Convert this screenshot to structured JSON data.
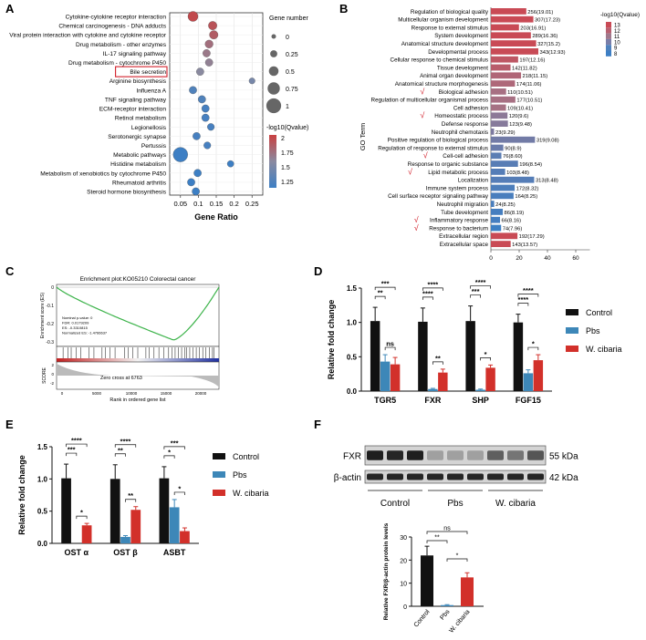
{
  "panels": {
    "A": {
      "label": "A",
      "title_note": "",
      "xlabel": "Gene Ratio",
      "xlim": [
        0.02,
        0.28
      ],
      "xticks": [
        0.05,
        0.1,
        0.15,
        0.2,
        0.25
      ],
      "xtick_labels": [
        "0.05",
        "0.1",
        "0.15",
        "0.2",
        "0.25"
      ],
      "highlighted": "Bile secretion",
      "size_legend_title": "Gene number",
      "size_legend": [
        "0",
        "0.25",
        "0.5",
        "0.75",
        "1"
      ],
      "color_legend_title": "-log10(Qvalue)",
      "color_legend": [
        "2",
        "1.75",
        "1.5",
        "1.25"
      ],
      "terms": [
        {
          "name": "Cytokine-cytokine receptor interaction",
          "ratio": 0.085,
          "size": 0.55,
          "q": 1.95
        },
        {
          "name": "Chemical carcinogenesis - DNA adducts",
          "ratio": 0.14,
          "size": 0.4,
          "q": 1.9
        },
        {
          "name": "Viral protein interaction with cytokine and cytokine receptor",
          "ratio": 0.143,
          "size": 0.4,
          "q": 1.85
        },
        {
          "name": "Drug metabolism - other enzymes",
          "ratio": 0.13,
          "size": 0.35,
          "q": 1.75
        },
        {
          "name": "IL-17 signaling pathway",
          "ratio": 0.123,
          "size": 0.3,
          "q": 1.7
        },
        {
          "name": "Drug metabolism - cytochrome P450",
          "ratio": 0.13,
          "size": 0.3,
          "q": 1.65
        },
        {
          "name": "Bile secretion",
          "ratio": 0.105,
          "size": 0.3,
          "q": 1.6
        },
        {
          "name": "Arginine biosynthesis",
          "ratio": 0.25,
          "size": 0.15,
          "q": 1.5
        },
        {
          "name": "Influenza A",
          "ratio": 0.085,
          "size": 0.3,
          "q": 1.3
        },
        {
          "name": "TNF signaling pathway",
          "ratio": 0.11,
          "size": 0.3,
          "q": 1.3
        },
        {
          "name": "ECM-receptor interaction",
          "ratio": 0.12,
          "size": 0.3,
          "q": 1.25
        },
        {
          "name": "Retinol metabolism",
          "ratio": 0.12,
          "size": 0.3,
          "q": 1.25
        },
        {
          "name": "Legionellosis",
          "ratio": 0.135,
          "size": 0.25,
          "q": 1.25
        },
        {
          "name": "Serotonergic synapse",
          "ratio": 0.095,
          "size": 0.3,
          "q": 1.25
        },
        {
          "name": "Pertussis",
          "ratio": 0.125,
          "size": 0.25,
          "q": 1.25
        },
        {
          "name": "Metabolic pathways",
          "ratio": 0.05,
          "size": 1.0,
          "q": 1.2
        },
        {
          "name": "Histidine metabolism",
          "ratio": 0.19,
          "size": 0.2,
          "q": 1.2
        },
        {
          "name": "Metabolism of xenobiotics by cytochrome P450",
          "ratio": 0.098,
          "size": 0.3,
          "q": 1.2
        },
        {
          "name": "Rheumatoid arthritis",
          "ratio": 0.08,
          "size": 0.3,
          "q": 1.2
        },
        {
          "name": "Steroid hormone biosynthesis",
          "ratio": 0.093,
          "size": 0.3,
          "q": 1.2
        }
      ]
    },
    "B": {
      "label": "B",
      "ylabel": "GO Term",
      "xlim": [
        0,
        70
      ],
      "xticks": [
        "0",
        "20",
        "40",
        "60"
      ],
      "legend_title": "-log10(Qvalue)",
      "legend_values": [
        "13",
        "12",
        "11",
        "10",
        "9",
        "8"
      ],
      "check_mark": "√",
      "terms": [
        {
          "name": "Regulation of biological quality",
          "value": 256,
          "q": 19.01,
          "label": "256(19.01)",
          "check": false
        },
        {
          "name": "Multicellular organism development",
          "value": 307,
          "q": 17.23,
          "label": "307(17.23)",
          "check": false
        },
        {
          "name": "Response to external stimulus",
          "value": 203,
          "q": 16.91,
          "label": "203(16.91)",
          "check": false
        },
        {
          "name": "System development",
          "value": 289,
          "q": 16.36,
          "label": "289(16.36)",
          "check": false
        },
        {
          "name": "Anatomical structure development",
          "value": 327,
          "q": 15.2,
          "label": "327(15.2)",
          "check": false
        },
        {
          "name": "Developmental process",
          "value": 343,
          "q": 12.93,
          "label": "343(12.93)",
          "check": false
        },
        {
          "name": "Cellular response to chemical stimulus",
          "value": 197,
          "q": 12.16,
          "label": "197(12.16)",
          "check": false
        },
        {
          "name": "Tissue development",
          "value": 142,
          "q": 11.82,
          "label": "142(11.82)",
          "check": false
        },
        {
          "name": "Animal organ development",
          "value": 218,
          "q": 11.15,
          "label": "218(11.15)",
          "check": false
        },
        {
          "name": "Anatomical structure morphogenesis",
          "value": 174,
          "q": 11.06,
          "label": "174(11.06)",
          "check": false
        },
        {
          "name": "Biological adhesion",
          "value": 110,
          "q": 10.51,
          "label": "110(10.51)",
          "check": true
        },
        {
          "name": "Regulation of multicellular organismal process",
          "value": 177,
          "q": 10.51,
          "label": "177(10.51)",
          "check": false
        },
        {
          "name": "Cell adhesion",
          "value": 109,
          "q": 10.41,
          "label": "109(10.41)",
          "check": false
        },
        {
          "name": "Homeostatic process",
          "value": 120,
          "q": 9.6,
          "label": "120(9.6)",
          "check": true
        },
        {
          "name": "Defense response",
          "value": 123,
          "q": 9.48,
          "label": "123(9.48)",
          "check": false
        },
        {
          "name": "Neutrophil chemotaxis",
          "value": 23,
          "q": 9.29,
          "label": "23(9.29)",
          "check": false
        },
        {
          "name": "Positive regulation of biological process",
          "value": 319,
          "q": 9.08,
          "label": "319(9.08)",
          "check": false
        },
        {
          "name": "Regulation of response to external stimulus",
          "value": 90,
          "q": 8.9,
          "label": "90(8.9)",
          "check": false
        },
        {
          "name": "Cell-cell adhesion",
          "value": 76,
          "q": 8.6,
          "label": "76(8.60)",
          "check": true
        },
        {
          "name": "Response to organic substance",
          "value": 196,
          "q": 8.54,
          "label": "196(8.54)",
          "check": false
        },
        {
          "name": "Lipid metabolic process",
          "value": 103,
          "q": 8.48,
          "label": "103(8.48)",
          "check": true
        },
        {
          "name": "Localization",
          "value": 313,
          "q": 8.48,
          "label": "313(8.48)",
          "check": false
        },
        {
          "name": "Immune system process",
          "value": 172,
          "q": 8.32,
          "label": "172(8.32)",
          "check": false
        },
        {
          "name": "Cell surface receptor signaling pathway",
          "value": 164,
          "q": 8.25,
          "label": "164(8.25)",
          "check": false
        },
        {
          "name": "Neutrophil migration",
          "value": 24,
          "q": 8.25,
          "label": "24(8.25)",
          "check": false
        },
        {
          "name": "Tube development",
          "value": 86,
          "q": 8.19,
          "label": "86(8.19)",
          "check": false
        },
        {
          "name": "Inflammatory response",
          "value": 66,
          "q": 8.16,
          "label": "66(8.16)",
          "check": true
        },
        {
          "name": "Response to bacterium",
          "value": 74,
          "q": 7.96,
          "label": "74(7.96)",
          "check": true
        },
        {
          "name": "Extracellular region",
          "value": 192,
          "q": 17.29,
          "label": "192(17.29)",
          "check": false
        },
        {
          "name": "Extracellular space",
          "value": 143,
          "q": 13.57,
          "label": "143(13.57)",
          "check": false
        }
      ]
    },
    "C": {
      "label": "C",
      "title": "Enrichment plot:KO05210 Colorectal cancer",
      "ylabel_top": "Enrichment score (ES)",
      "stats": [
        "Nominal p-value: 0",
        "FDR: 0.0179209",
        "ES: -0.3310815",
        "Normalized ES: -1.4766637"
      ],
      "es_ticks": [
        "0",
        "-0.1",
        "-0.2",
        "-0.3"
      ],
      "zero_cross": "Zero cross at 6763",
      "xlabel": "Rank in ordered gene list",
      "xticks": [
        "0",
        "5000",
        "10000",
        "15000",
        "20000"
      ],
      "ylabel_bottom": "SCORE",
      "score_ticks": [
        "2",
        "0",
        "-2"
      ]
    },
    "D": {
      "label": "D",
      "chart_data": {
        "type": "bar",
        "ylabel": "Relative fold change",
        "ylim": [
          0,
          1.5
        ],
        "yticks": [
          "0.0",
          "0.5",
          "1.0",
          "1.5"
        ],
        "categories": [
          "TGR5",
          "FXR",
          "SHP",
          "FGF15"
        ],
        "series": [
          {
            "name": "Control",
            "color": "#111111",
            "values": [
              1.02,
              1.01,
              1.02,
              1.0
            ],
            "errors": [
              0.2,
              0.2,
              0.22,
              0.12
            ]
          },
          {
            "name": "Pbs",
            "color": "#3d87b8",
            "values": [
              0.43,
              0.03,
              0.02,
              0.26
            ],
            "errors": [
              0.1,
              0.01,
              0.01,
              0.05
            ]
          },
          {
            "name": "W. cibaria",
            "color": "#d2302a",
            "values": [
              0.39,
              0.27,
              0.34,
              0.45
            ],
            "errors": [
              0.1,
              0.05,
              0.04,
              0.08
            ]
          }
        ],
        "significance": [
          {
            "group": 0,
            "pairs": [
              "***",
              "**",
              "ns"
            ]
          },
          {
            "group": 1,
            "pairs": [
              "****",
              "****",
              "**"
            ]
          },
          {
            "group": 2,
            "pairs": [
              "****",
              "***",
              "*"
            ]
          },
          {
            "group": 3,
            "pairs": [
              "****",
              "****",
              "*"
            ]
          }
        ]
      }
    },
    "E": {
      "label": "E",
      "chart_data": {
        "type": "bar",
        "ylabel": "Relative fold change",
        "ylim": [
          0,
          1.5
        ],
        "yticks": [
          "0.0",
          "0.5",
          "1.0",
          "1.5"
        ],
        "categories": [
          "OST α",
          "OST β",
          "ASBT"
        ],
        "series": [
          {
            "name": "Control",
            "color": "#111111",
            "values": [
              1.01,
              1.0,
              1.01
            ],
            "errors": [
              0.22,
              0.22,
              0.18
            ]
          },
          {
            "name": "Pbs",
            "color": "#3d87b8",
            "values": [
              0.0,
              0.1,
              0.56
            ],
            "errors": [
              0.0,
              0.02,
              0.12
            ]
          },
          {
            "name": "W. cibaria",
            "color": "#d2302a",
            "values": [
              0.28,
              0.52,
              0.19
            ],
            "errors": [
              0.03,
              0.05,
              0.05
            ]
          }
        ],
        "significance": [
          {
            "group": 0,
            "pairs": [
              "****",
              "***",
              "*"
            ]
          },
          {
            "group": 1,
            "pairs": [
              "****",
              "**",
              "**"
            ]
          },
          {
            "group": 2,
            "pairs": [
              "***",
              "*",
              "*"
            ]
          }
        ]
      }
    },
    "F": {
      "label": "F",
      "blot_rows": [
        {
          "name": "FXR",
          "size": "55 kDa"
        },
        {
          "name": "β-actin",
          "size": "42 kDa"
        }
      ],
      "groups": [
        "Control",
        "Pbs",
        "W. cibaria"
      ],
      "chart_data": {
        "type": "bar",
        "ylabel": "Relative FXR/β-actin protein levels",
        "ylim": [
          0,
          30
        ],
        "yticks": [
          "0",
          "10",
          "20",
          "30"
        ],
        "categories": [
          "Control",
          "Pbs",
          "W. cibaria"
        ],
        "values": [
          22,
          0.5,
          12.5
        ],
        "errors": [
          4,
          0.2,
          2
        ],
        "colors": [
          "#111111",
          "#3d87b8",
          "#d2302a"
        ],
        "significance": [
          "ns",
          "**",
          "*"
        ]
      }
    }
  }
}
